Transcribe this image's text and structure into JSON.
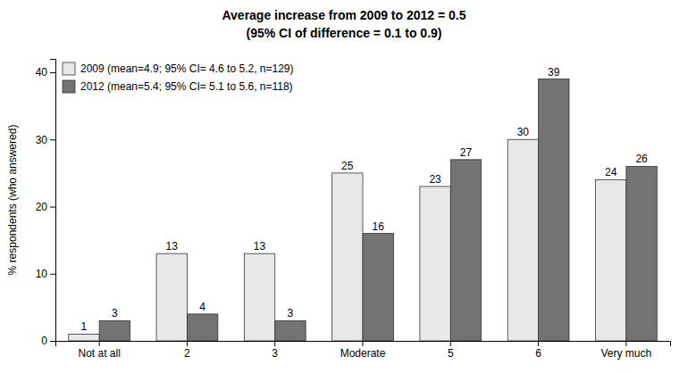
{
  "chart_data": {
    "type": "bar",
    "title": "Average increase from 2009 to 2012 = 0.5",
    "subtitle": "(95% CI of difference = 0.1 to 0.9)",
    "categories": [
      "Not at all",
      "2",
      "3",
      "Moderate",
      "5",
      "6",
      "Very much"
    ],
    "series": [
      {
        "name": "2009 (mean=4.9; 95% CI= 4.6 to 5.2, n=129)",
        "color": "#e8e8e8",
        "values": [
          1,
          13,
          13,
          25,
          23,
          30,
          24
        ]
      },
      {
        "name": "2012 (mean=5.4; 95% CI= 5.1 to 5.6, n=118)",
        "color": "#737373",
        "values": [
          3,
          4,
          3,
          16,
          27,
          39,
          26
        ]
      }
    ],
    "ylabel": "% respondents (who answered)",
    "ylim": [
      0,
      42
    ],
    "yticks": [
      0,
      10,
      20,
      30,
      40
    ],
    "data_labels": true,
    "legend": "upper left"
  }
}
